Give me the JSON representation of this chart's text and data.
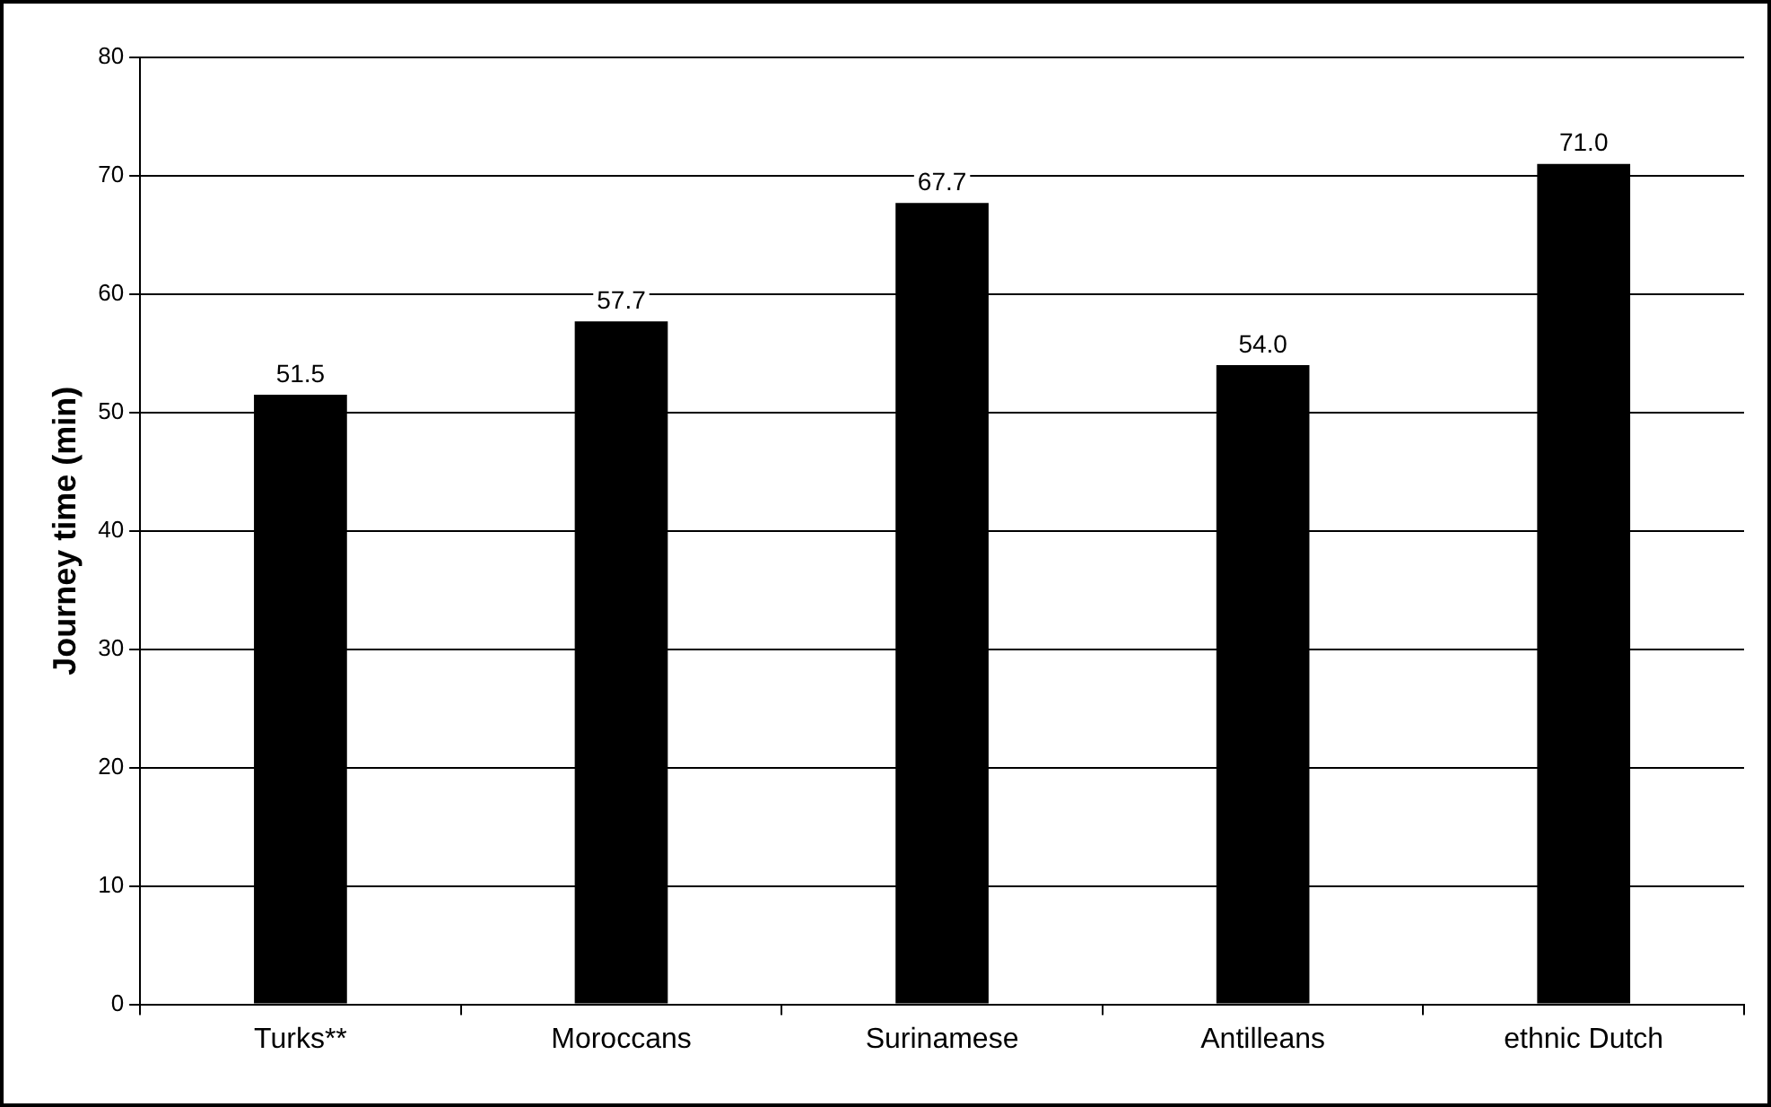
{
  "chart_data": {
    "type": "bar",
    "ylabel": "Journey time (min)",
    "categories": [
      "Turks**",
      "Moroccans",
      "Surinamese",
      "Antilleans",
      "ethnic Dutch"
    ],
    "values": [
      51.5,
      57.7,
      67.7,
      54.0,
      71.0
    ],
    "value_labels": [
      "51.5",
      "57.7",
      "67.7",
      "54.0",
      "71.0"
    ],
    "color": "#000000",
    "ylim": [
      0,
      80
    ],
    "yticks": [
      0,
      10,
      20,
      30,
      40,
      50,
      60,
      70,
      80
    ],
    "grid": "y",
    "legend": false
  }
}
